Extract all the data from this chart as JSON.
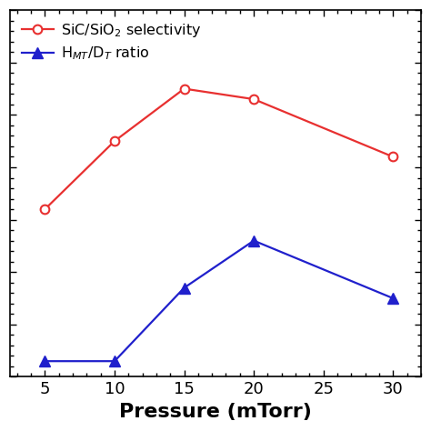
{
  "red_x": [
    5,
    10,
    15,
    20,
    30
  ],
  "red_y": [
    3.2,
    4.5,
    5.5,
    5.3,
    4.2
  ],
  "blue_x": [
    5,
    10,
    15,
    20,
    30
  ],
  "blue_y": [
    0.3,
    0.3,
    1.7,
    2.6,
    1.5
  ],
  "red_color": "#e83030",
  "blue_color": "#2020cc",
  "xlabel": "Pressure (mTorr)",
  "legend_red": "SiC/SiO$_2$ selectivity",
  "legend_blue": "H$_{MT}$/D$_T$ ratio",
  "xlim": [
    2.5,
    32
  ],
  "ylim": [
    0,
    7
  ],
  "xticks": [
    5,
    10,
    15,
    20,
    25,
    30
  ],
  "figsize": [
    4.74,
    4.74
  ],
  "dpi": 100
}
